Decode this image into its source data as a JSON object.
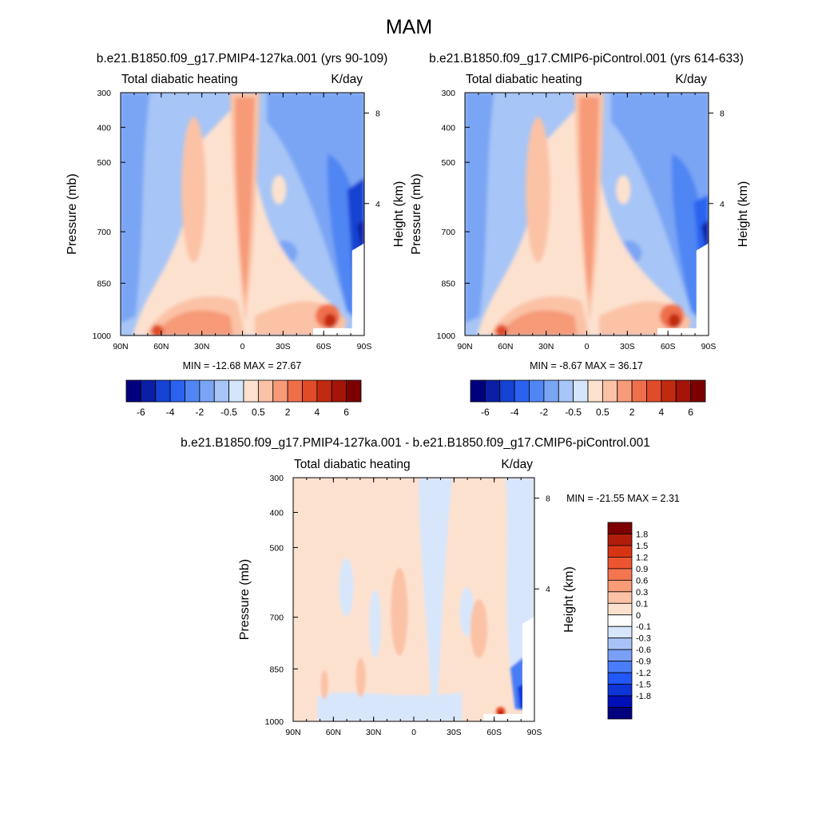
{
  "chart_data": {
    "type": "contour",
    "title": "MAM",
    "panels": [
      {
        "id": "p1",
        "kind": "model",
        "title": "b.e21.B1850.f09_g17.PMIP4-127ka.001 (yrs 90-109)",
        "left_label": "Total diabatic heating",
        "right_label": "K/day",
        "xlabel": "",
        "ylabel": "Pressure (mb)",
        "ylabel_right": "Height (km)",
        "x_ticks": [
          "90N",
          "60N",
          "30N",
          "0",
          "30S",
          "60S",
          "90S"
        ],
        "y_ticks": [
          "300",
          "400",
          "500",
          "700",
          "850",
          "1000"
        ],
        "y_right_ticks": [
          "8",
          "4"
        ],
        "stats": "MIN = -12.68  MAX =  27.67",
        "colorbar_labels": [
          "-6",
          "-4",
          "-2",
          "-0.5",
          "0.5",
          "2",
          "4",
          "6"
        ]
      },
      {
        "id": "p2",
        "kind": "model",
        "title": "b.e21.B1850.f09_g17.CMIP6-piControl.001 (yrs 614-633)",
        "left_label": "Total diabatic heating",
        "right_label": "K/day",
        "xlabel": "",
        "ylabel": "Pressure (mb)",
        "ylabel_right": "Height (km)",
        "x_ticks": [
          "90N",
          "60N",
          "30N",
          "0",
          "30S",
          "60S",
          "90S"
        ],
        "y_ticks": [
          "300",
          "400",
          "500",
          "700",
          "850",
          "1000"
        ],
        "y_right_ticks": [
          "8",
          "4"
        ],
        "stats": "MIN =  -8.67  MAX =  36.17",
        "colorbar_labels": [
          "-6",
          "-4",
          "-2",
          "-0.5",
          "0.5",
          "2",
          "4",
          "6"
        ]
      },
      {
        "id": "p3",
        "kind": "diff",
        "title": "b.e21.B1850.f09_g17.PMIP4-127ka.001 - b.e21.B1850.f09_g17.CMIP6-piControl.001",
        "left_label": "Total diabatic heating",
        "right_label": "K/day",
        "xlabel": "",
        "ylabel": "Pressure (mb)",
        "ylabel_right": "Height (km)",
        "x_ticks": [
          "90N",
          "60N",
          "30N",
          "0",
          "30S",
          "60S",
          "90S"
        ],
        "y_ticks": [
          "300",
          "400",
          "500",
          "700",
          "850",
          "1000"
        ],
        "y_right_ticks": [
          "8",
          "4"
        ],
        "stats": "MIN = -21.55  MAX =   2.31",
        "colorbar_labels": [
          "1.8",
          "1.5",
          "1.2",
          "0.9",
          "0.6",
          "0.3",
          "0.1",
          "0",
          "-0.1",
          "-0.3",
          "-0.6",
          "-0.9",
          "-1.2",
          "-1.5",
          "-1.8"
        ]
      }
    ],
    "abs_levels": [
      -6,
      -5,
      -4,
      -3,
      -2,
      -1,
      -0.5,
      0,
      0.5,
      1,
      2,
      3,
      4,
      5,
      6
    ],
    "diff_levels": [
      -1.8,
      -1.5,
      -1.2,
      -0.9,
      -0.6,
      -0.3,
      -0.1,
      0,
      0.1,
      0.3,
      0.6,
      0.9,
      1.2,
      1.5,
      1.8
    ],
    "abs_colors": [
      "#00007f",
      "#0b1fa6",
      "#1442d2",
      "#2b63f0",
      "#4f86f3",
      "#7aa5f4",
      "#a7c5f6",
      "#d5e6fa",
      "#fde1cf",
      "#fbc2a6",
      "#f69a78",
      "#ef6f4b",
      "#e04b28",
      "#c22a0f",
      "#a41409",
      "#7d0000"
    ],
    "diff_colors": [
      "#00007f",
      "#0010b8",
      "#0d35d8",
      "#2258f5",
      "#4a7df7",
      "#7aa0f6",
      "#a9c3f8",
      "#d7e6fb",
      "#fdfdfd",
      "#fde1cf",
      "#fbc2a6",
      "#f89c78",
      "#f37650",
      "#ec5530",
      "#d63415",
      "#b01e0b",
      "#7d0000"
    ]
  }
}
